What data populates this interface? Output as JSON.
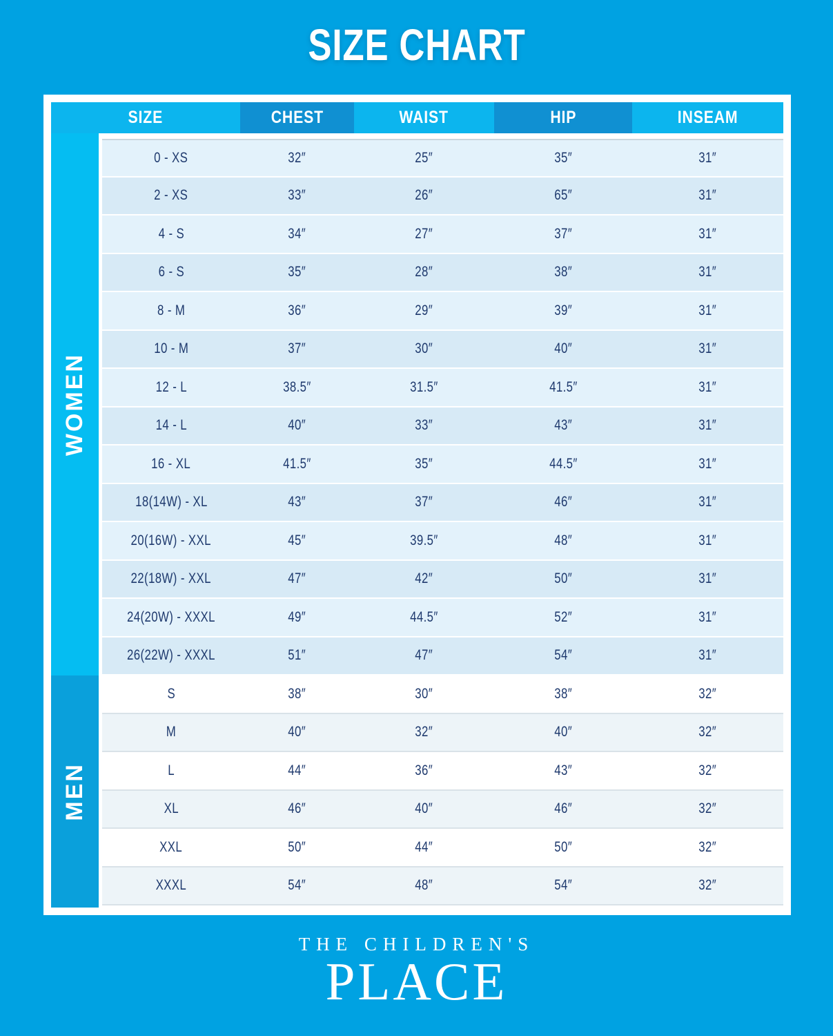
{
  "chart_data": {
    "type": "table",
    "title": "SIZE CHART",
    "columns": [
      "SIZE",
      "CHEST",
      "WAIST",
      "HIP",
      "INSEAM"
    ],
    "sections": [
      {
        "label": "WOMEN",
        "rows": [
          [
            "0 - XS",
            "32″",
            "25″",
            "35″",
            "31″"
          ],
          [
            "2 - XS",
            "33″",
            "26″",
            "65″",
            "31″"
          ],
          [
            "4 - S",
            "34″",
            "27″",
            "37″",
            "31″"
          ],
          [
            "6 - S",
            "35″",
            "28″",
            "38″",
            "31″"
          ],
          [
            "8 - M",
            "36″",
            "29″",
            "39″",
            "31″"
          ],
          [
            "10 - M",
            "37″",
            "30″",
            "40″",
            "31″"
          ],
          [
            "12 - L",
            "38.5″",
            "31.5″",
            "41.5″",
            "31″"
          ],
          [
            "14 - L",
            "40″",
            "33″",
            "43″",
            "31″"
          ],
          [
            "16 - XL",
            "41.5″",
            "35″",
            "44.5″",
            "31″"
          ],
          [
            "18(14W) - XL",
            "43″",
            "37″",
            "46″",
            "31″"
          ],
          [
            "20(16W) - XXL",
            "45″",
            "39.5″",
            "48″",
            "31″"
          ],
          [
            "22(18W) - XXL",
            "47″",
            "42″",
            "50″",
            "31″"
          ],
          [
            "24(20W) - XXXL",
            "49″",
            "44.5″",
            "52″",
            "31″"
          ],
          [
            "26(22W) - XXXL",
            "51″",
            "47″",
            "54″",
            "31″"
          ]
        ]
      },
      {
        "label": "MEN",
        "rows": [
          [
            "S",
            "38″",
            "30″",
            "38″",
            "32″"
          ],
          [
            "M",
            "40″",
            "32″",
            "40″",
            "32″"
          ],
          [
            "L",
            "44″",
            "36″",
            "43″",
            "32″"
          ],
          [
            "XL",
            "46″",
            "40″",
            "46″",
            "32″"
          ],
          [
            "XXL",
            "50″",
            "44″",
            "50″",
            "32″"
          ],
          [
            "XXXL",
            "54″",
            "48″",
            "54″",
            "32″"
          ]
        ]
      }
    ],
    "layout_hints": {
      "header_alternating_colors": [
        "#0CB5EE",
        "#1090D2"
      ],
      "women_row_colors": [
        "#E3F2FB",
        "#D7EAF6"
      ],
      "men_row_colors": [
        "#FFFFFF",
        "#EDF4F8"
      ]
    }
  },
  "footer": {
    "brand_top": "THE CHILDREN'S",
    "brand_bottom": "PLACE"
  },
  "colors": {
    "background": "#00A2E2",
    "women_sidebar": "#05BDF2",
    "men_sidebar": "#0AA0DB",
    "text_navy": "#1F3A6E",
    "text_white": "#FFFFFF"
  }
}
